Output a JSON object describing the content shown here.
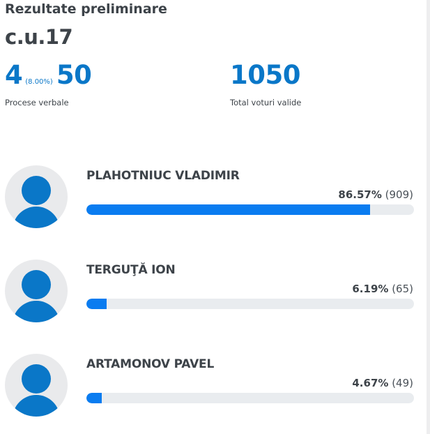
{
  "header": {
    "title": "Rezultate preliminare",
    "district": "c.u.17"
  },
  "stats": {
    "processed": "4",
    "processed_pct": "(8.00%)",
    "total_protocols": "50",
    "protocols_label": "Procese verbale",
    "valid_votes": "1050",
    "valid_votes_label": "Total voturi valide"
  },
  "candidates": [
    {
      "name": "PLAHOTNIUC VLADIMIR",
      "percent": "86.57%",
      "votes": "(909)",
      "share": 0.8657
    },
    {
      "name": "TERGUŢĂ ION",
      "percent": "6.19%",
      "votes": "(65)",
      "share": 0.0619
    },
    {
      "name": "ARTAMONOV PAVEL",
      "percent": "4.67%",
      "votes": "(49)",
      "share": 0.0467
    }
  ],
  "colors": {
    "accent": "#0a77c8",
    "bar_fill": "#0a7cf0",
    "bar_track": "#e9ecef",
    "text": "#3d4349"
  },
  "icons": {
    "avatar": "person-avatar-icon"
  }
}
